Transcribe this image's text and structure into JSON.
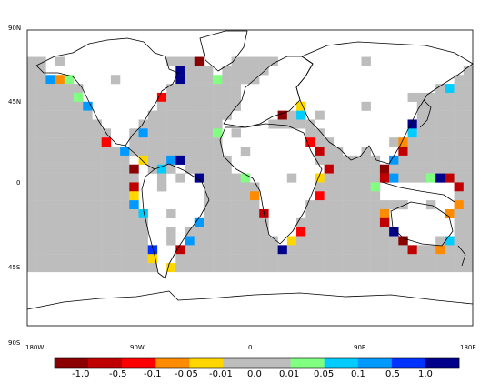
{
  "map": {
    "lat_ticks": [
      "90N",
      "45N",
      "0",
      "45S",
      "90S"
    ],
    "lon_ticks": [
      "180W",
      "90W",
      "0",
      "90E",
      "180E"
    ],
    "ocean_color": "#ffffff",
    "no_data_color": "#bdbdbd",
    "coast_color": "#000000"
  },
  "colorbar": {
    "labels": [
      "-1.0",
      "-0.5",
      "-0.1",
      "-0.05",
      "-0.01",
      "0.0",
      "0.01",
      "0.05",
      "0.1",
      "0.5",
      "1.0"
    ],
    "colors": [
      "#8b0000",
      "#c00000",
      "#ff0000",
      "#ff8c00",
      "#ffd700",
      "#bdbdbd",
      "#bdbdbd",
      "#80ff80",
      "#00ccff",
      "#0099ff",
      "#0033ff",
      "#00008b"
    ]
  }
}
